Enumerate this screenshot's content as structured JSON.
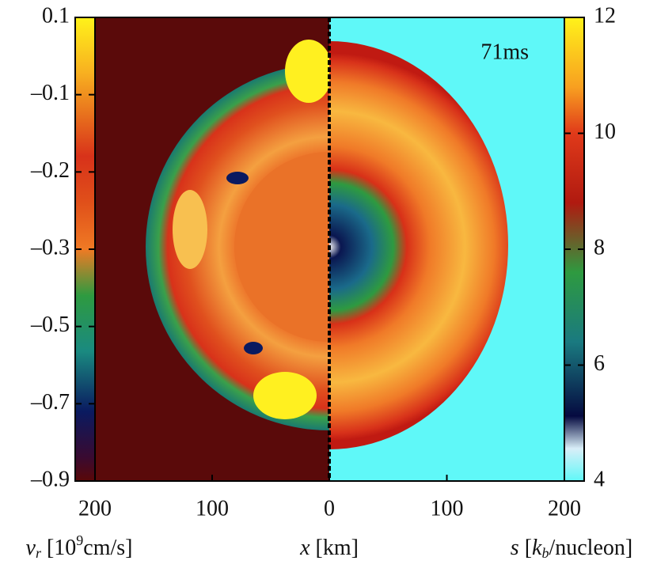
{
  "chart_data": {
    "type": "heatmap",
    "annotation": "71ms",
    "left_colorbar": {
      "label": {
        "symbol": "v",
        "subscript": "r",
        "unit_open": " [10",
        "superscript": "9",
        "unit_close": "cm/s]"
      },
      "ticks": [
        0.1,
        {
          "value": -0.1,
          "label": "–0.1"
        },
        {
          "value": -0.2,
          "label": "–0.2"
        },
        {
          "value": -0.3,
          "label": "–0.3"
        },
        {
          "value": -0.5,
          "label": "–0.5"
        },
        {
          "value": -0.7,
          "label": "–0.7"
        },
        {
          "value": -0.9,
          "label": "–0.9"
        }
      ]
    },
    "right_colorbar": {
      "label": {
        "symbol": "s",
        "unit_open": " [",
        "unit_symbol": "k",
        "subscript": "b",
        "unit_close": "/nucleon]"
      },
      "ylim": [
        4,
        12
      ],
      "yticks": [
        4,
        6,
        8,
        10,
        12
      ]
    },
    "x_axis": {
      "label": {
        "symbol": "x",
        "unit": " [km]"
      },
      "left": {
        "xlim": [
          200,
          0
        ],
        "xticks": [
          200,
          100
        ]
      },
      "right": {
        "xlim": [
          0,
          200
        ],
        "xticks": [
          0,
          100,
          200
        ]
      }
    }
  }
}
